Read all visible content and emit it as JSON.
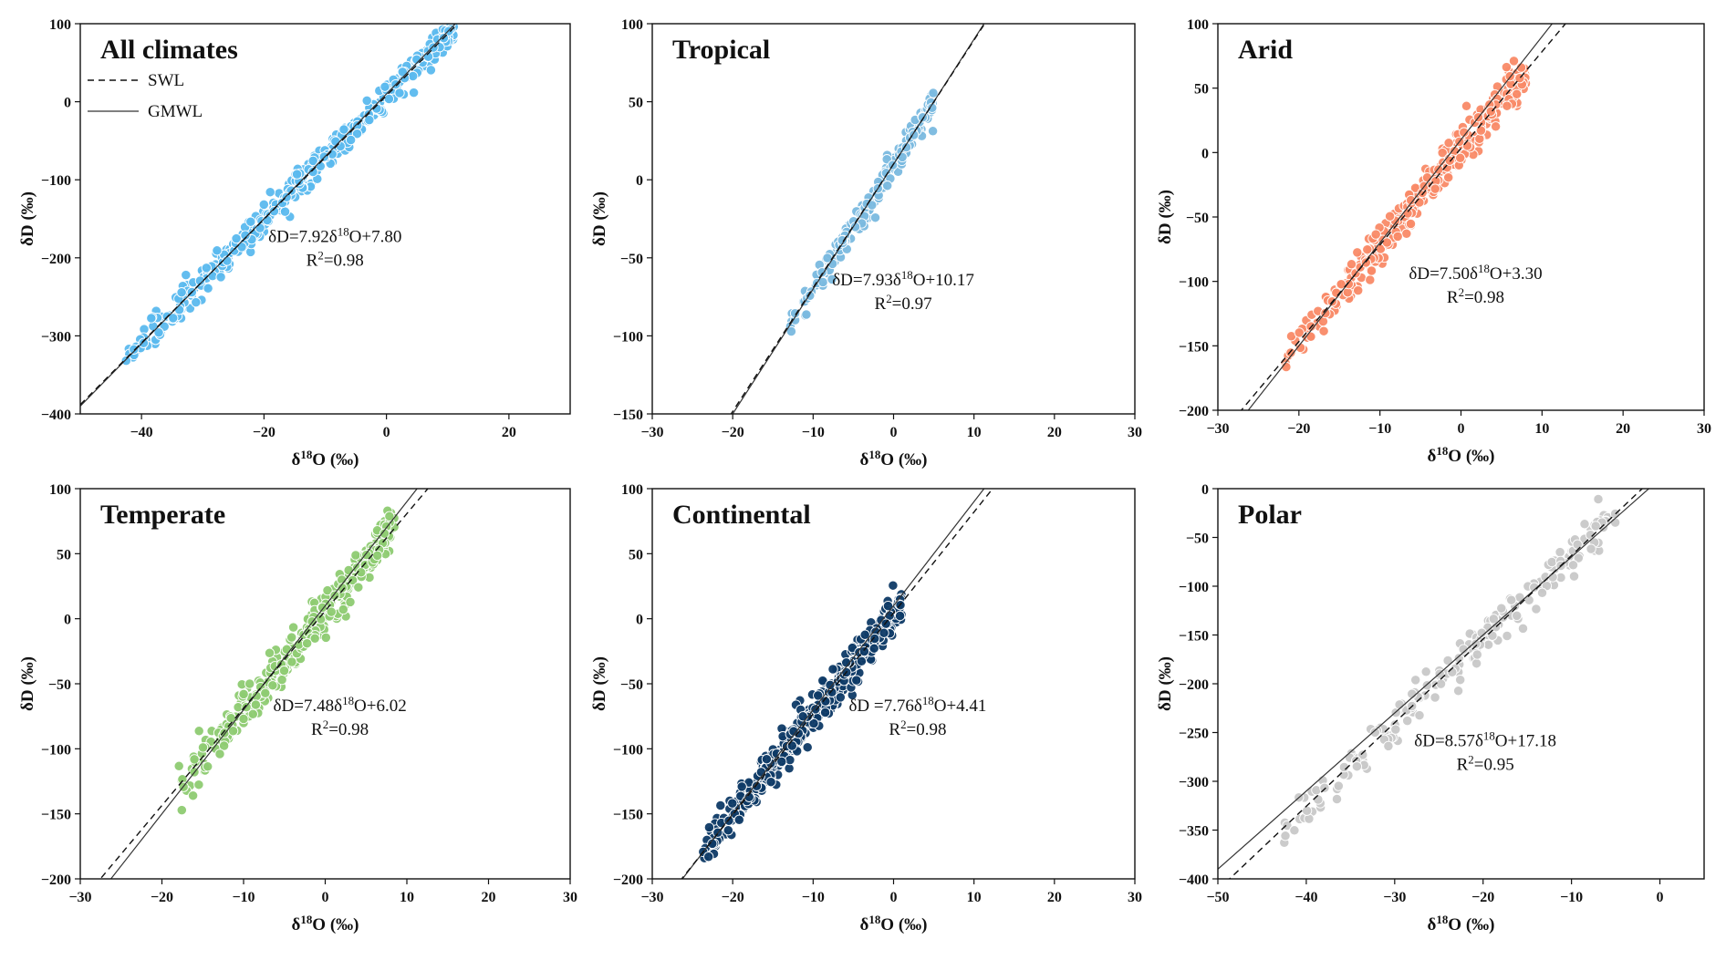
{
  "legend": {
    "swl_label": "SWL",
    "gmwl_label": "GMWL"
  },
  "reference_lines": {
    "gmwl": {
      "slope": 8,
      "intercept": 10
    }
  },
  "chart_data": [
    {
      "type": "scatter",
      "title": "All climates",
      "xlabel": "δ18O (‰)",
      "ylabel": "δD (‰)",
      "xlim": [
        -50,
        30
      ],
      "ylim": [
        -400,
        100
      ],
      "xticks": [
        -40,
        -20,
        0,
        20
      ],
      "yticks": [
        -400,
        -300,
        -200,
        -100,
        0,
        100
      ],
      "color": "#5bb9ee",
      "series": [
        {
          "name": "SWL",
          "slope": 7.92,
          "intercept": 7.8,
          "r2": 0.98
        },
        {
          "name": "GMWL",
          "slope": 8,
          "intercept": 10
        }
      ],
      "equation": "δD=7.92δ18O+7.80",
      "r2": "R2=0.98",
      "point_range": {
        "x": [
          -43,
          11
        ],
        "residual_sd": 9,
        "n": 420
      },
      "legend": "top-left",
      "grid": false
    },
    {
      "type": "scatter",
      "title": "Tropical",
      "xlabel": "δ18O (‰)",
      "ylabel": "δD (‰)",
      "xlim": [
        -30,
        30
      ],
      "ylim": [
        -150,
        100
      ],
      "xticks": [
        -30,
        -20,
        -10,
        0,
        10,
        20,
        30
      ],
      "yticks": [
        -150,
        -100,
        -50,
        0,
        50,
        100
      ],
      "color": "#7ab9df",
      "series": [
        {
          "name": "SWL",
          "slope": 7.93,
          "intercept": 10.17,
          "r2": 0.97
        },
        {
          "name": "GMWL",
          "slope": 8,
          "intercept": 10
        }
      ],
      "equation": "δD=7.93δ18O+10.17",
      "r2": "R2=0.97",
      "point_range": {
        "x": [
          -13,
          5
        ],
        "residual_sd": 5,
        "n": 180
      },
      "grid": false
    },
    {
      "type": "scatter",
      "title": "Arid",
      "xlabel": "δ18O (‰)",
      "ylabel": "δD (‰)",
      "xlim": [
        -30,
        30
      ],
      "ylim": [
        -200,
        100
      ],
      "xticks": [
        -30,
        -20,
        -10,
        0,
        10,
        20,
        30
      ],
      "yticks": [
        -200,
        -150,
        -100,
        -50,
        0,
        50,
        100
      ],
      "color": "#f98a67",
      "series": [
        {
          "name": "SWL",
          "slope": 7.5,
          "intercept": 3.3,
          "r2": 0.98
        },
        {
          "name": "GMWL",
          "slope": 8,
          "intercept": 10
        }
      ],
      "equation": "δD=7.50δ18O+3.30",
      "r2": "R2=0.98",
      "point_range": {
        "x": [
          -22,
          8
        ],
        "residual_sd": 8,
        "n": 330
      },
      "grid": false
    },
    {
      "type": "scatter",
      "title": "Temperate",
      "xlabel": "δ18O (‰)",
      "ylabel": "δD (‰)",
      "xlim": [
        -30,
        30
      ],
      "ylim": [
        -200,
        100
      ],
      "xticks": [
        -30,
        -20,
        -10,
        0,
        10,
        20,
        30
      ],
      "yticks": [
        -200,
        -150,
        -100,
        -50,
        0,
        50,
        100
      ],
      "color": "#8ecb72",
      "series": [
        {
          "name": "SWL",
          "slope": 7.48,
          "intercept": 6.02,
          "r2": 0.98
        },
        {
          "name": "GMWL",
          "slope": 8,
          "intercept": 10
        }
      ],
      "equation": "δD=7.48δ18O+6.02",
      "r2": "R2=0.98",
      "point_range": {
        "x": [
          -18,
          8.5
        ],
        "residual_sd": 9,
        "n": 320
      },
      "grid": false
    },
    {
      "type": "scatter",
      "title": "Continental",
      "xlabel": "δ18O (‰)",
      "ylabel": "δD (‰)",
      "xlim": [
        -30,
        30
      ],
      "ylim": [
        -200,
        100
      ],
      "xticks": [
        -30,
        -20,
        -10,
        0,
        10,
        20,
        30
      ],
      "yticks": [
        -200,
        -150,
        -100,
        -50,
        0,
        50,
        100
      ],
      "color": "#0e3a66",
      "series": [
        {
          "name": "SWL",
          "slope": 7.76,
          "intercept": 4.41,
          "r2": 0.98
        },
        {
          "name": "GMWL",
          "slope": 8,
          "intercept": 10
        }
      ],
      "equation": "δD =7.76δ18O+4.41",
      "r2": "R2=0.98",
      "point_range": {
        "x": [
          -24,
          1
        ],
        "residual_sd": 7,
        "n": 460
      },
      "grid": false
    },
    {
      "type": "scatter",
      "title": "Polar",
      "xlabel": "δ18O (‰)",
      "ylabel": "δD (‰)",
      "xlim": [
        -50,
        5
      ],
      "ylim": [
        -400,
        0
      ],
      "xticks": [
        -50,
        -40,
        -30,
        -20,
        -10,
        0
      ],
      "yticks": [
        -400,
        -350,
        -300,
        -250,
        -200,
        -150,
        -100,
        -50,
        0
      ],
      "color": "#c8c8c8",
      "series": [
        {
          "name": "SWL",
          "slope": 8.57,
          "intercept": 17.18,
          "r2": 0.95
        },
        {
          "name": "GMWL",
          "slope": 8,
          "intercept": 10
        }
      ],
      "equation": "δD=8.57δ18O+17.18",
      "r2": "R2=0.95",
      "point_range": {
        "x": [
          -43,
          -5
        ],
        "residual_sd": 10,
        "n": 200
      },
      "grid": false
    }
  ]
}
